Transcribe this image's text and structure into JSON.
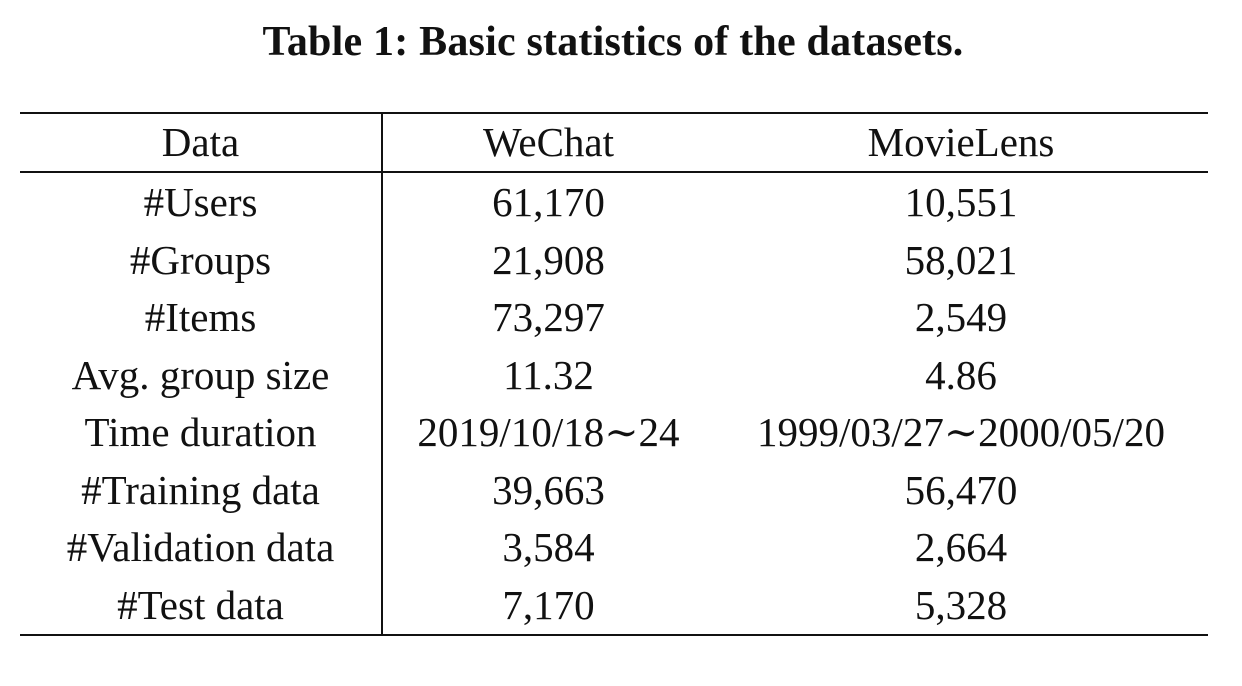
{
  "caption": "Table 1: Basic statistics of the datasets.",
  "table": {
    "headers": [
      "Data",
      "WeChat",
      "MovieLens"
    ],
    "rows": [
      [
        "#Users",
        "61,170",
        "10,551"
      ],
      [
        "#Groups",
        "21,908",
        "58,021"
      ],
      [
        "#Items",
        "73,297",
        "2,549"
      ],
      [
        "Avg. group size",
        "11.32",
        "4.86"
      ],
      [
        "Time duration",
        "2019/10/18∼24",
        "1999/03/27∼2000/05/20"
      ],
      [
        "#Training data",
        "39,663",
        "56,470"
      ],
      [
        "#Validation data",
        "3,584",
        "2,664"
      ],
      [
        "#Test data",
        "7,170",
        "5,328"
      ]
    ]
  }
}
